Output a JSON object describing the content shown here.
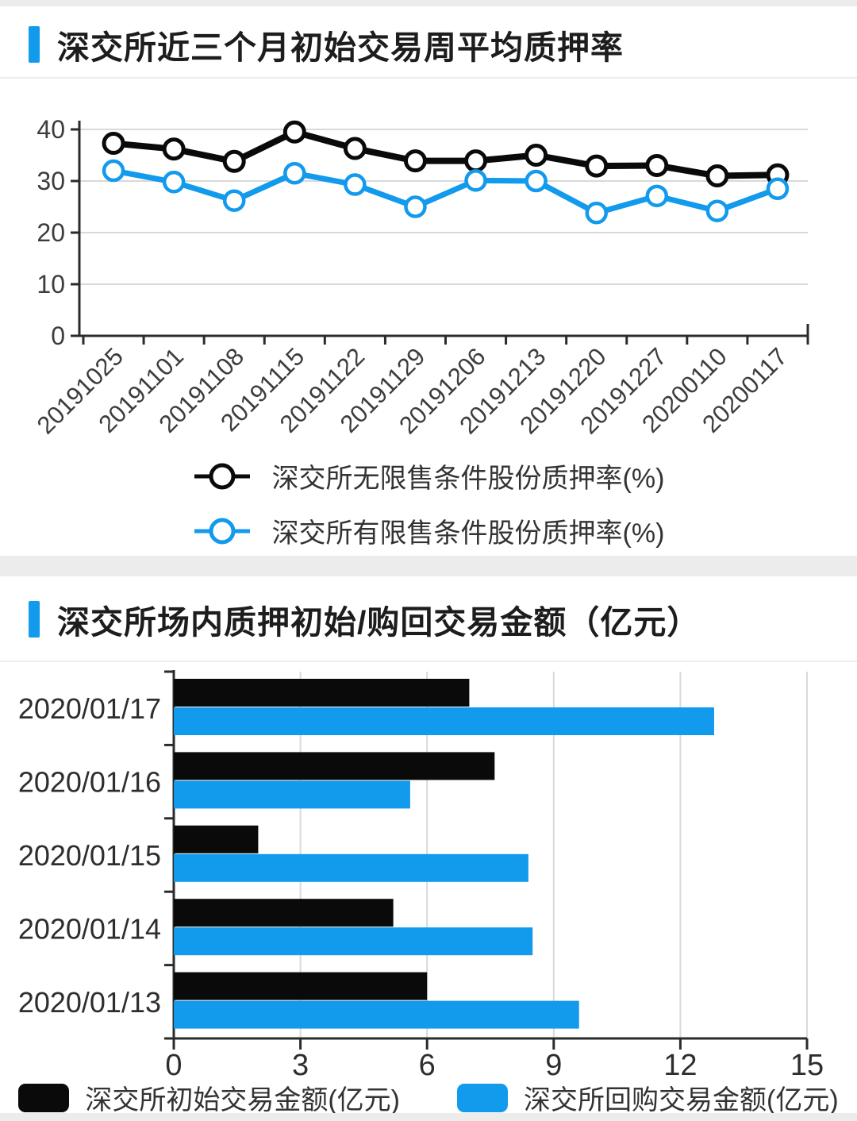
{
  "page": {
    "accent_color": "#129AEC",
    "background": "#ffffff",
    "band_color": "#ececec",
    "axis_color": "#2b2b2b",
    "grid_color": "#d9d9d9"
  },
  "chart_data": [
    {
      "type": "line",
      "title": "深交所近三个月初始交易周平均质押率",
      "categories": [
        "20191025",
        "20191101",
        "20191108",
        "20191115",
        "20191122",
        "20191129",
        "20191206",
        "20191213",
        "20191220",
        "20191227",
        "20200110",
        "20200117"
      ],
      "series": [
        {
          "name": "深交所无限售条件股份质押率(%)",
          "color": "#0a0a0a",
          "values": [
            37.3,
            36.2,
            33.8,
            39.5,
            36.3,
            33.9,
            33.9,
            35.0,
            32.9,
            33.0,
            31.0,
            31.2
          ]
        },
        {
          "name": "深交所有限售条件股份质押率(%)",
          "color": "#129AEC",
          "values": [
            32.0,
            29.8,
            26.2,
            31.5,
            29.3,
            25.0,
            30.1,
            30.0,
            23.8,
            27.1,
            24.2,
            28.5
          ]
        }
      ],
      "ylim": [
        0,
        40
      ],
      "yticks": [
        0,
        10,
        20,
        30,
        40
      ],
      "grid": true,
      "legend_position": "bottom"
    },
    {
      "type": "bar",
      "orientation": "horizontal",
      "title": "深交所场内质押初始/购回交易金额（亿元）",
      "categories": [
        "2020/01/17",
        "2020/01/16",
        "2020/01/15",
        "2020/01/14",
        "2020/01/13"
      ],
      "series": [
        {
          "name": "深交所初始交易金额(亿元)",
          "color": "#0a0a0a",
          "values": [
            7.0,
            7.6,
            2.0,
            5.2,
            6.0
          ]
        },
        {
          "name": "深交所回购交易金额(亿元)",
          "color": "#129AEC",
          "values": [
            12.8,
            5.6,
            8.4,
            8.5,
            9.6
          ]
        }
      ],
      "xlim": [
        0,
        15
      ],
      "xticks": [
        0,
        3,
        6,
        9,
        12,
        15
      ],
      "grid": true,
      "legend_position": "bottom"
    }
  ]
}
